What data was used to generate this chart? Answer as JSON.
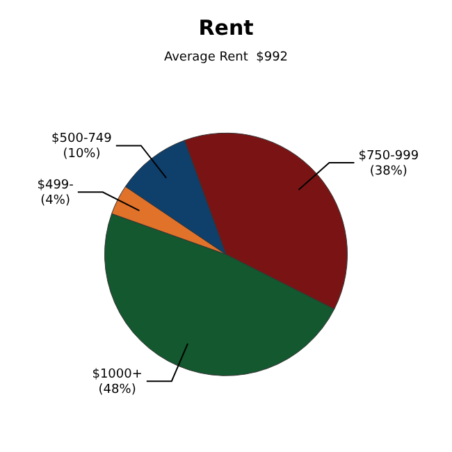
{
  "chart_data": {
    "type": "pie",
    "title": "Rent",
    "subtitle": "Average Rent  $992",
    "categories": [
      "$750-999",
      "$1000+",
      "$499-",
      "$500-749"
    ],
    "values": [
      38,
      48,
      4,
      10
    ],
    "colors": [
      "#7a1414",
      "#13582e",
      "#e0722a",
      "#0f3f6b"
    ],
    "value_labels": [
      "(38%)",
      "(48%)",
      "(4%)",
      "(10%)"
    ],
    "legend": false
  }
}
